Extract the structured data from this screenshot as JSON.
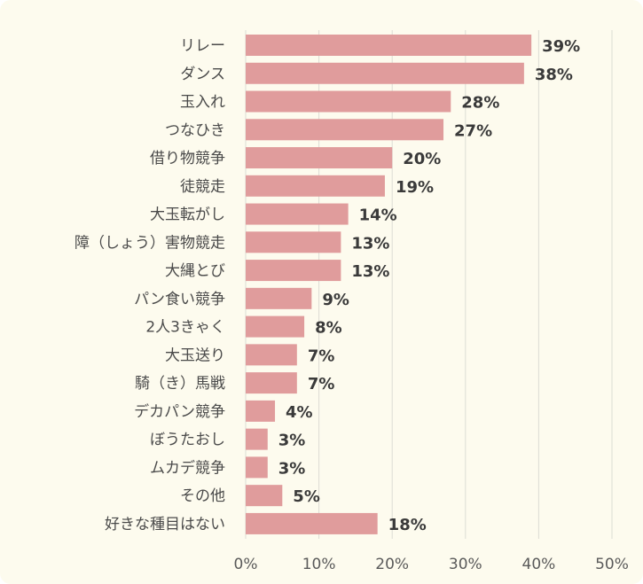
{
  "chart_data": {
    "type": "bar",
    "orientation": "horizontal",
    "categories": [
      "リレー",
      "ダンス",
      "玉入れ",
      "つなひき",
      "借り物競争",
      "徒競走",
      "大玉転がし",
      "障（しょう）害物競走",
      "大縄とび",
      "パン食い競争",
      "2人3きゃく",
      "大玉送り",
      "騎（き）馬戦",
      "デカパン競争",
      "ぼうたおし",
      "ムカデ競争",
      "その他",
      "好きな種目はない"
    ],
    "values": [
      39,
      38,
      28,
      27,
      20,
      19,
      14,
      13,
      13,
      9,
      8,
      7,
      7,
      4,
      3,
      3,
      5,
      18
    ],
    "value_labels": [
      "39%",
      "38%",
      "28%",
      "27%",
      "20%",
      "19%",
      "14%",
      "13%",
      "13%",
      "9%",
      "8%",
      "7%",
      "7%",
      "4%",
      "3%",
      "3%",
      "5%",
      "18%"
    ],
    "x_ticks": [
      "0%",
      "10%",
      "20%",
      "30%",
      "40%",
      "50%"
    ],
    "xlim": [
      0,
      50
    ],
    "grid": true,
    "bar_color": "#e09c9c",
    "background_color": "#fdfbee"
  }
}
